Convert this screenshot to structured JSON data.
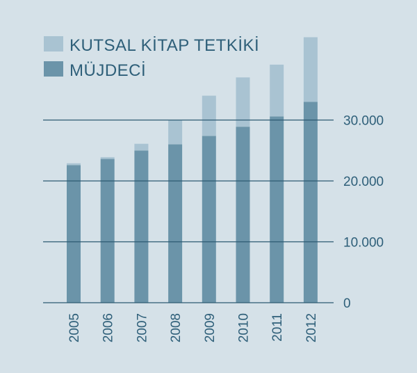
{
  "chart_data": {
    "type": "bar",
    "stacked": true,
    "categories": [
      "2005",
      "2006",
      "2007",
      "2008",
      "2009",
      "2010",
      "2011",
      "2012"
    ],
    "series": [
      {
        "name": "MÜJDECİ",
        "color": "#6b94a9",
        "values": [
          22600,
          23600,
          25000,
          26000,
          27400,
          28900,
          30600,
          33000
        ]
      },
      {
        "name": "KUTSAL KİTAP TETKİKİ",
        "color": "#a9c3d2",
        "values": [
          300,
          300,
          1100,
          4000,
          6600,
          8100,
          8500,
          10600
        ]
      }
    ],
    "ylim": [
      0,
      43000
    ],
    "yticks": [
      0,
      10000,
      20000,
      30000
    ],
    "ytick_labels": [
      "0",
      "10.000",
      "20.000",
      "30.000"
    ],
    "grid": true,
    "legend": "top-left"
  }
}
